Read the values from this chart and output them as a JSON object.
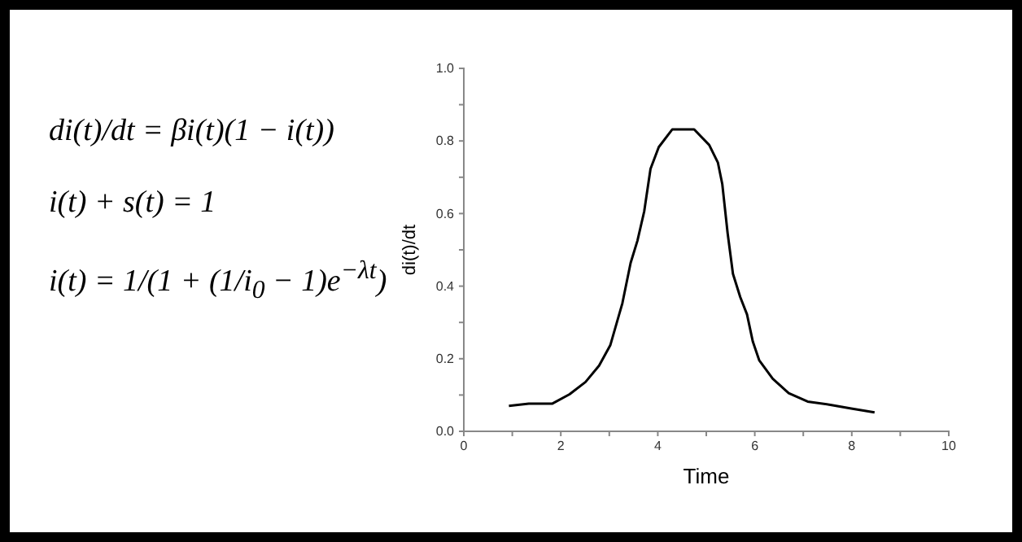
{
  "chart_data": {
    "type": "line",
    "xlabel": "Time",
    "ylabel": "di(t)/dt",
    "annotations": [
      "di(t)/dt = βi(t)(1 − i(t))",
      "i(t) + s(t) = 1",
      "i(t) = 1/(1 + (1/i$_{0}$ − 1)e$^{−λt}$)"
    ],
    "x": [
      0.93,
      1.34,
      1.82,
      2.18,
      2.51,
      2.79,
      3.02,
      3.27,
      3.44,
      3.58,
      3.72,
      3.85,
      4.02,
      4.3,
      4.75,
      5.06,
      5.24,
      5.33,
      5.44,
      5.55,
      5.7,
      5.84,
      5.96,
      6.09,
      6.37,
      6.7,
      7.09,
      7.56,
      7.99,
      8.47
    ],
    "series": [
      {
        "color": "#000000",
        "values": [
          0.07,
          0.076,
          0.076,
          0.102,
          0.136,
          0.181,
          0.237,
          0.353,
          0.464,
          0.525,
          0.606,
          0.723,
          0.783,
          0.832,
          0.832,
          0.789,
          0.74,
          0.681,
          0.546,
          0.434,
          0.37,
          0.322,
          0.247,
          0.196,
          0.145,
          0.105,
          0.082,
          0.073,
          0.063,
          0.052
        ]
      }
    ],
    "xlim": [
      0,
      10
    ],
    "ylim": [
      0,
      1
    ],
    "xticks": [
      0,
      {
        "value": 1,
        "label": null
      },
      2,
      {
        "value": 3,
        "label": null
      },
      4,
      {
        "value": 5,
        "label": null
      },
      6,
      {
        "value": 7,
        "label": null
      },
      8,
      {
        "value": 9,
        "label": null
      },
      10
    ],
    "yticks": [
      {
        "value": 0,
        "label": "0.0"
      },
      {
        "value": 0.1,
        "label": null
      },
      {
        "value": 0.2,
        "label": "0.2"
      },
      {
        "value": 0.3,
        "label": null
      },
      {
        "value": 0.4,
        "label": "0.4"
      },
      {
        "value": 0.5,
        "label": null
      },
      {
        "value": 0.6,
        "label": "0.6"
      },
      {
        "value": 0.7,
        "label": null
      },
      {
        "value": 0.8,
        "label": "0.8"
      },
      {
        "value": 0.9,
        "label": null
      },
      {
        "value": 1,
        "label": "1.0"
      }
    ],
    "grid": false,
    "marker": "none",
    "line_style": "solid"
  }
}
